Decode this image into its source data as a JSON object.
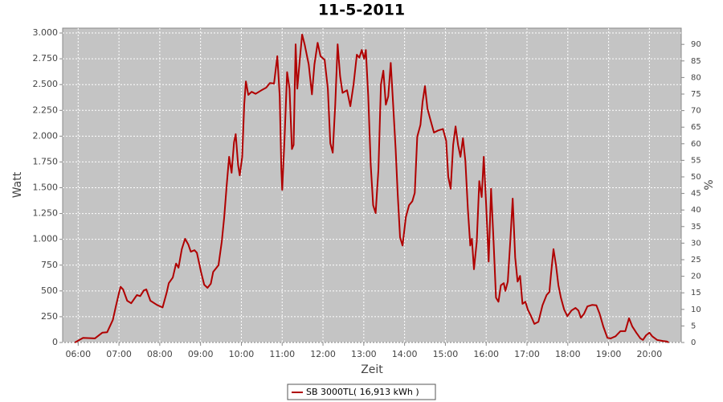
{
  "chart_data": {
    "type": "line",
    "title": "11-5-2011",
    "x_label": "Zeit",
    "y_label": "Watt",
    "y2_label": "%",
    "grid": true,
    "xlim": [
      5.62,
      20.78
    ],
    "xticks": [
      {
        "value": 6,
        "label": "06:00"
      },
      {
        "value": 7,
        "label": "07:00"
      },
      {
        "value": 8,
        "label": "08:00"
      },
      {
        "value": 9,
        "label": "09:00"
      },
      {
        "value": 10,
        "label": "10:00"
      },
      {
        "value": 11,
        "label": "11:00"
      },
      {
        "value": 12,
        "label": "12:00"
      },
      {
        "value": 13,
        "label": "13:00"
      },
      {
        "value": 14,
        "label": "14:00"
      },
      {
        "value": 15,
        "label": "15:00"
      },
      {
        "value": 16,
        "label": "16:00"
      },
      {
        "value": 17,
        "label": "17:00"
      },
      {
        "value": 18,
        "label": "18:00"
      },
      {
        "value": 19,
        "label": "19:00"
      },
      {
        "value": 20,
        "label": "20:00"
      }
    ],
    "ylim": [
      0,
      3047
    ],
    "yticks": [
      0,
      250,
      500,
      750,
      {
        "value": 1000,
        "label": "1.000"
      },
      {
        "value": 1250,
        "label": "1.250"
      },
      {
        "value": 1500,
        "label": "1.500"
      },
      {
        "value": 1750,
        "label": "1.750"
      },
      {
        "value": 2000,
        "label": "2.000"
      },
      {
        "value": 2250,
        "label": "2.250"
      },
      {
        "value": 2500,
        "label": "2.500"
      },
      {
        "value": 2750,
        "label": "2.750"
      },
      {
        "value": 3000,
        "label": "3.000"
      }
    ],
    "y2lim": [
      0,
      94.9
    ],
    "y2ticks": [
      0,
      5,
      10,
      15,
      20,
      25,
      30,
      35,
      40,
      45,
      50,
      55,
      60,
      65,
      70,
      75,
      80,
      85,
      90
    ],
    "x": [
      5.92,
      6.12,
      6.41,
      6.59,
      6.71,
      6.85,
      6.93,
      7.0,
      7.04,
      7.1,
      7.2,
      7.3,
      7.44,
      7.52,
      7.61,
      7.67,
      7.77,
      7.93,
      8.07,
      8.17,
      8.22,
      8.32,
      8.4,
      8.46,
      8.54,
      8.62,
      8.7,
      8.76,
      8.85,
      8.91,
      9.01,
      9.09,
      9.17,
      9.25,
      9.31,
      9.39,
      9.44,
      9.52,
      9.58,
      9.64,
      9.7,
      9.76,
      9.82,
      9.86,
      9.92,
      9.96,
      10.02,
      10.07,
      10.11,
      10.17,
      10.25,
      10.35,
      10.49,
      10.61,
      10.7,
      10.8,
      10.88,
      10.94,
      10.98,
      11.0,
      11.06,
      11.12,
      11.18,
      11.24,
      11.28,
      11.33,
      11.37,
      11.43,
      11.49,
      11.55,
      11.65,
      11.73,
      11.79,
      11.87,
      11.94,
      12.04,
      12.12,
      12.18,
      12.24,
      12.3,
      12.36,
      12.42,
      12.48,
      12.59,
      12.67,
      12.75,
      12.83,
      12.89,
      12.95,
      13.01,
      13.05,
      13.11,
      13.17,
      13.23,
      13.29,
      13.36,
      13.42,
      13.48,
      13.54,
      13.6,
      13.66,
      13.72,
      13.78,
      13.83,
      13.89,
      13.95,
      14.03,
      14.11,
      14.19,
      14.25,
      14.31,
      14.39,
      14.44,
      14.5,
      14.56,
      14.64,
      14.72,
      14.82,
      14.94,
      15.02,
      15.07,
      15.13,
      15.19,
      15.25,
      15.31,
      15.37,
      15.43,
      15.49,
      15.55,
      15.61,
      15.65,
      15.7,
      15.77,
      15.83,
      15.89,
      15.94,
      16.0,
      16.06,
      16.12,
      16.18,
      16.24,
      16.3,
      16.36,
      16.43,
      16.47,
      16.53,
      16.59,
      16.65,
      16.71,
      16.77,
      16.83,
      16.89,
      16.96,
      17.02,
      17.1,
      17.18,
      17.28,
      17.38,
      17.48,
      17.55,
      17.59,
      17.65,
      17.71,
      17.77,
      17.83,
      17.91,
      17.99,
      18.09,
      18.19,
      18.26,
      18.32,
      18.4,
      18.48,
      18.6,
      18.7,
      18.78,
      18.87,
      18.97,
      19.05,
      19.17,
      19.29,
      19.41,
      19.5,
      19.58,
      19.68,
      19.78,
      19.84,
      19.92,
      20.0,
      20.07,
      20.19,
      20.33,
      20.43,
      20.47
    ],
    "series": [
      {
        "name": "SB 3000TL( 16,913 kWh )",
        "color": "#b00000",
        "values": [
          0,
          45,
          40,
          95,
          100,
          220,
          360,
          480,
          540,
          515,
          405,
          380,
          460,
          450,
          505,
          515,
          405,
          365,
          340,
          485,
          575,
          630,
          765,
          725,
          905,
          1005,
          950,
          880,
          895,
          870,
          685,
          560,
          530,
          570,
          685,
          725,
          750,
          980,
          1215,
          1525,
          1800,
          1645,
          1940,
          2020,
          1720,
          1620,
          1800,
          2305,
          2530,
          2400,
          2430,
          2410,
          2445,
          2470,
          2515,
          2510,
          2775,
          2385,
          1680,
          1480,
          1995,
          2620,
          2460,
          1875,
          1915,
          2890,
          2460,
          2735,
          2985,
          2890,
          2695,
          2405,
          2695,
          2905,
          2775,
          2740,
          2460,
          1930,
          1840,
          2305,
          2890,
          2580,
          2420,
          2445,
          2290,
          2500,
          2790,
          2760,
          2835,
          2750,
          2835,
          2385,
          1720,
          1330,
          1255,
          1680,
          2500,
          2635,
          2305,
          2385,
          2710,
          2305,
          1875,
          1450,
          1020,
          940,
          1215,
          1330,
          1370,
          1450,
          1995,
          2110,
          2330,
          2485,
          2265,
          2150,
          2035,
          2055,
          2070,
          1955,
          1605,
          1490,
          1915,
          2095,
          1915,
          1800,
          1980,
          1760,
          1295,
          940,
          1005,
          710,
          980,
          1565,
          1410,
          1800,
          1330,
          785,
          1490,
          980,
          435,
          395,
          555,
          575,
          500,
          590,
          980,
          1395,
          825,
          590,
          645,
          375,
          395,
          320,
          255,
          180,
          200,
          360,
          460,
          490,
          670,
          905,
          750,
          555,
          435,
          320,
          255,
          310,
          335,
          310,
          240,
          280,
          350,
          365,
          360,
          280,
          155,
          45,
          40,
          60,
          110,
          110,
          235,
          155,
          95,
          40,
          25,
          70,
          95,
          60,
          25,
          15,
          10,
          0
        ]
      }
    ]
  }
}
